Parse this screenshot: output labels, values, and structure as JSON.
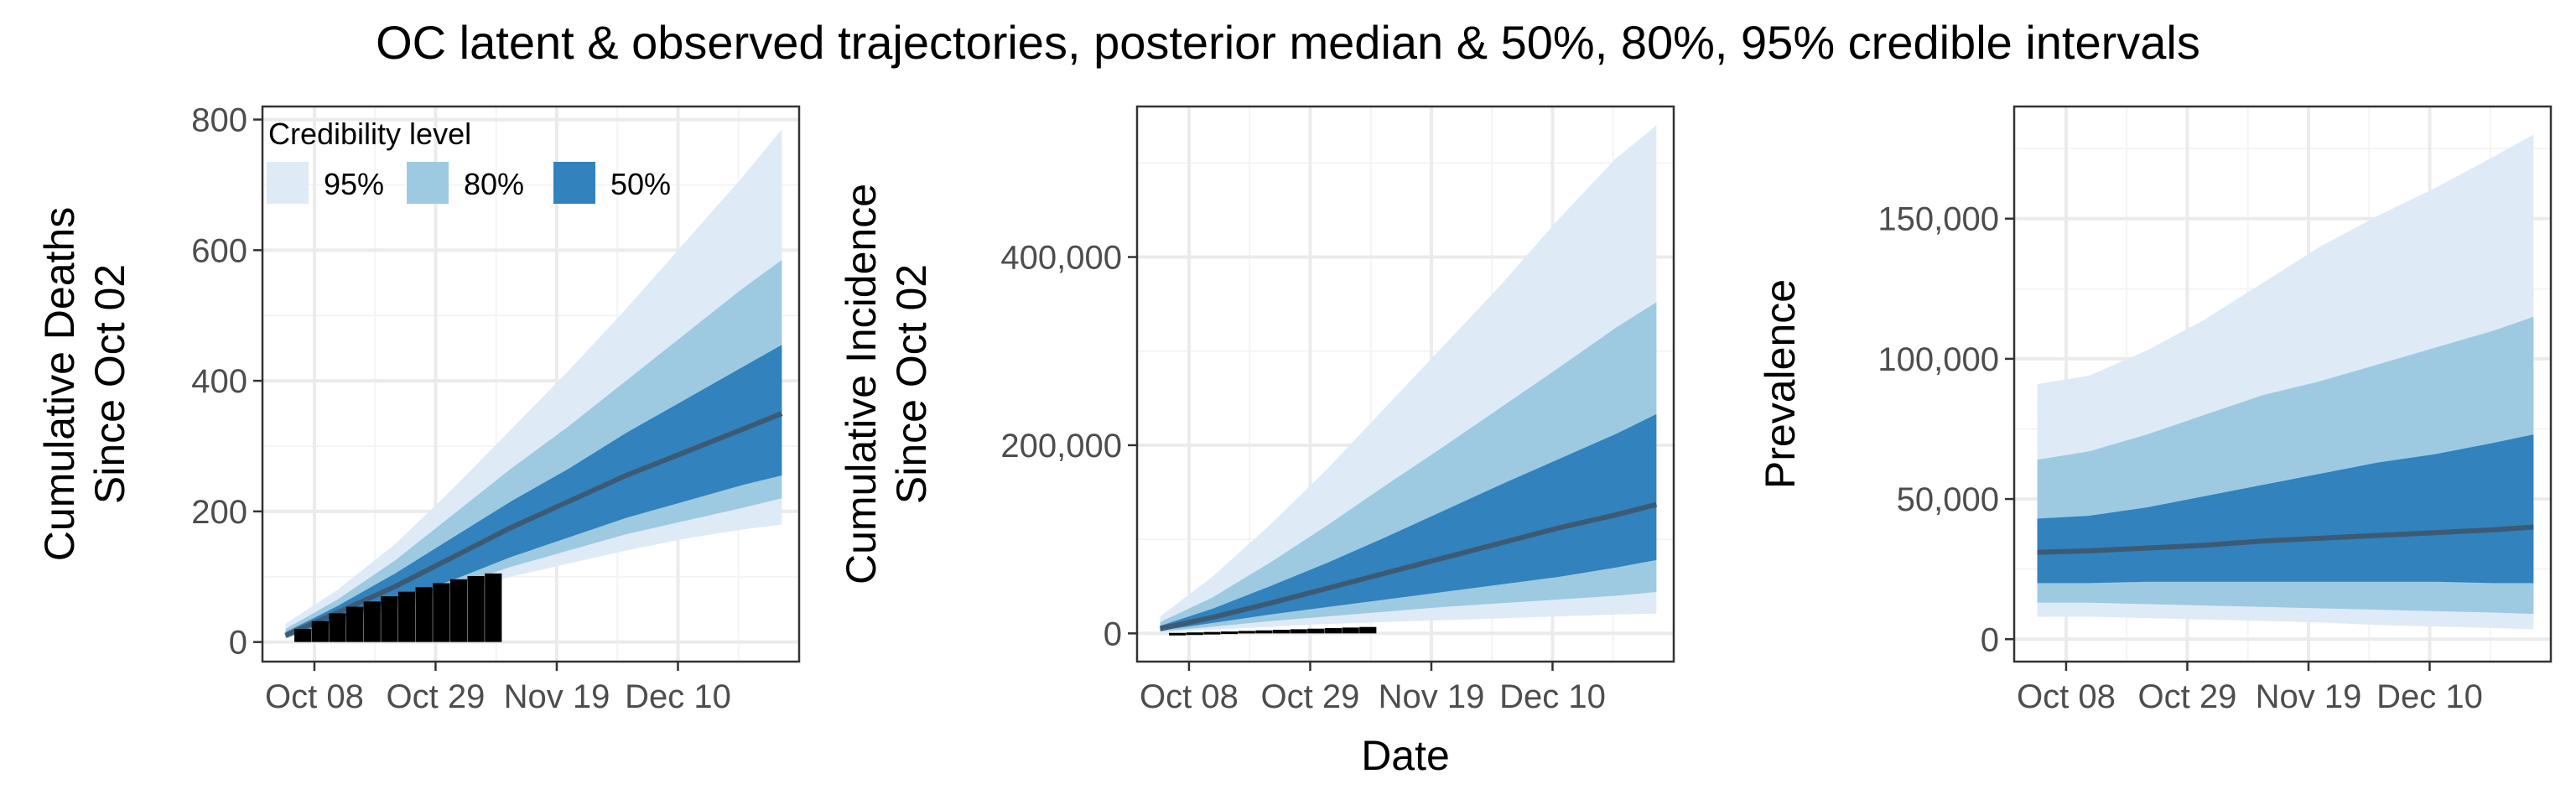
{
  "title": "OC latent & observed trajectories, posterior median & 50%, 80%, 95% credible intervals",
  "x_axis_title": "Date",
  "legend": {
    "title": "Credibility level",
    "entries": [
      {
        "label": "95%",
        "color": "#deebf7"
      },
      {
        "label": "80%",
        "color": "#9ecae1"
      },
      {
        "label": "50%",
        "color": "#3182bd"
      }
    ]
  },
  "colors": {
    "band95": "#deebf7",
    "band80": "#9ecae1",
    "band50": "#3182bd",
    "median": "#3d5a75",
    "observed": "#000000",
    "grid_major": "#ebebeb",
    "grid_minor": "#f4f4f4",
    "panel_border": "#333333"
  },
  "chart_data": [
    {
      "type": "area",
      "ylabel": [
        "Cumulative Deaths",
        "Since Oct 02"
      ],
      "xlim": [
        -3,
        90
      ],
      "ylim": [
        -30,
        820
      ],
      "x_ticks": [
        {
          "x": 6,
          "label": "Oct 08"
        },
        {
          "x": 27,
          "label": "Oct 29"
        },
        {
          "x": 48,
          "label": "Nov 19"
        },
        {
          "x": 69,
          "label": "Dec 10"
        }
      ],
      "y_ticks": [
        {
          "y": 0,
          "label": "0"
        },
        {
          "y": 200,
          "label": "200"
        },
        {
          "y": 400,
          "label": "400"
        },
        {
          "y": 600,
          "label": "600"
        },
        {
          "y": 800,
          "label": "800"
        }
      ],
      "x": [
        1,
        10,
        20,
        30,
        40,
        50,
        60,
        70,
        80,
        87
      ],
      "median": [
        10,
        45,
        85,
        130,
        175,
        215,
        255,
        290,
        325,
        350
      ],
      "band50": {
        "lower": [
          8,
          35,
          65,
          95,
          130,
          160,
          190,
          215,
          240,
          255
        ],
        "upper": [
          15,
          55,
          105,
          160,
          215,
          265,
          320,
          370,
          420,
          455
        ]
      },
      "band80": {
        "lower": [
          6,
          30,
          55,
          85,
          115,
          140,
          165,
          185,
          205,
          220
        ],
        "upper": [
          20,
          65,
          125,
          195,
          265,
          330,
          400,
          470,
          540,
          585
        ]
      },
      "band95": {
        "lower": [
          5,
          25,
          48,
          75,
          100,
          120,
          140,
          158,
          172,
          180
        ],
        "upper": [
          28,
          80,
          150,
          235,
          325,
          415,
          510,
          610,
          710,
          785
        ]
      },
      "observed": {
        "x": [
          4,
          7,
          10,
          13,
          16,
          19,
          22,
          25,
          28,
          31,
          34,
          37
        ],
        "y": [
          20,
          32,
          44,
          54,
          62,
          70,
          77,
          84,
          90,
          96,
          101,
          105
        ]
      }
    },
    {
      "type": "area",
      "ylabel": [
        "Cumulative Incidence",
        "Since Oct 02"
      ],
      "xlim": [
        -3,
        90
      ],
      "ylim": [
        -30000,
        560000
      ],
      "x_ticks": [
        {
          "x": 6,
          "label": "Oct 08"
        },
        {
          "x": 27,
          "label": "Oct 29"
        },
        {
          "x": 48,
          "label": "Nov 19"
        },
        {
          "x": 69,
          "label": "Dec 10"
        }
      ],
      "y_ticks": [
        {
          "y": 0,
          "label": "0"
        },
        {
          "y": 200000,
          "label": "200,000"
        },
        {
          "y": 400000,
          "label": "400,000"
        }
      ],
      "x": [
        1,
        10,
        20,
        30,
        40,
        50,
        60,
        70,
        80,
        87
      ],
      "median": [
        5000,
        17000,
        32000,
        48000,
        64000,
        80000,
        96000,
        112000,
        126000,
        137000
      ],
      "band50": {
        "lower": [
          3000,
          11000,
          20000,
          28000,
          36000,
          44000,
          52000,
          60000,
          70000,
          78000
        ],
        "upper": [
          8000,
          26000,
          50000,
          75000,
          102000,
          130000,
          158000,
          185000,
          212000,
          233000
        ]
      },
      "band80": {
        "lower": [
          2000,
          7000,
          13000,
          18000,
          23000,
          28000,
          32000,
          36000,
          40000,
          44000
        ],
        "upper": [
          12000,
          38000,
          75000,
          115000,
          157000,
          198000,
          240000,
          282000,
          325000,
          352000
        ]
      },
      "band95": {
        "lower": [
          1000,
          4000,
          7000,
          10000,
          12000,
          14000,
          16000,
          18000,
          20000,
          21000
        ],
        "upper": [
          18000,
          60000,
          115000,
          175000,
          240000,
          305000,
          370000,
          440000,
          505000,
          540000
        ]
      },
      "observed": {
        "x": [
          4,
          7,
          10,
          13,
          16,
          19,
          22,
          25,
          28,
          31,
          34,
          37
        ],
        "y": [
          500,
          1000,
          1500,
          2000,
          2600,
          3200,
          3800,
          4400,
          5000,
          5600,
          6200,
          6800
        ]
      }
    },
    {
      "type": "area",
      "ylabel": [
        "Prevalence"
      ],
      "xlim": [
        -3,
        90
      ],
      "ylim": [
        -8000,
        190000
      ],
      "x_ticks": [
        {
          "x": 6,
          "label": "Oct 08"
        },
        {
          "x": 27,
          "label": "Oct 29"
        },
        {
          "x": 48,
          "label": "Nov 19"
        },
        {
          "x": 69,
          "label": "Dec 10"
        }
      ],
      "y_ticks": [
        {
          "y": 0,
          "label": "0"
        },
        {
          "y": 50000,
          "label": "50,000"
        },
        {
          "y": 100000,
          "label": "100,000"
        },
        {
          "y": 150000,
          "label": "150,000"
        }
      ],
      "x": [
        1,
        10,
        20,
        30,
        40,
        50,
        60,
        70,
        80,
        87
      ],
      "median": [
        31000,
        31500,
        32500,
        33500,
        35000,
        36000,
        37000,
        38000,
        39000,
        40000
      ],
      "band50": {
        "lower": [
          20000,
          20000,
          20500,
          20500,
          20500,
          20500,
          20500,
          20500,
          20000,
          20000
        ],
        "upper": [
          43000,
          44000,
          47000,
          51000,
          55000,
          59000,
          63000,
          66000,
          70000,
          73000
        ]
      },
      "band80": {
        "lower": [
          13000,
          13000,
          12500,
          12000,
          11500,
          11000,
          10500,
          10000,
          9500,
          9000
        ],
        "upper": [
          64000,
          67000,
          73000,
          80000,
          87000,
          92000,
          98000,
          104000,
          110000,
          115000
        ]
      },
      "band95": {
        "lower": [
          8000,
          8000,
          7500,
          7000,
          6500,
          6000,
          5000,
          4500,
          4000,
          3500
        ],
        "upper": [
          91000,
          94000,
          103000,
          114000,
          127000,
          140000,
          151000,
          161000,
          172000,
          180000
        ]
      },
      "observed": {
        "x": [],
        "y": []
      }
    }
  ]
}
